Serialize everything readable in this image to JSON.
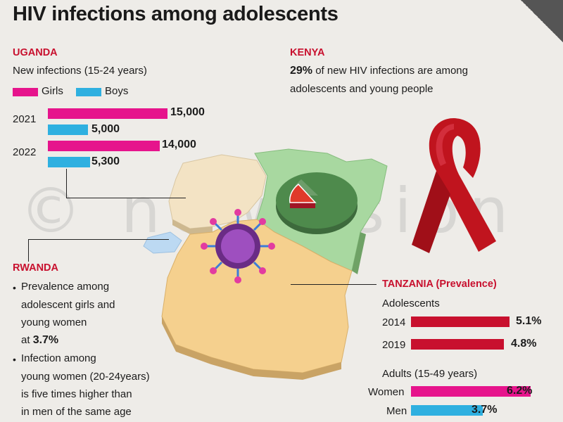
{
  "title": "HIV infections among adolescents",
  "colors": {
    "girls": "#e6148c",
    "boys": "#2fb0e0",
    "tanzania_bars": "#c8102e",
    "accent_red": "#c8102e"
  },
  "watermark": "© newvision",
  "uganda": {
    "label": "UGANDA",
    "subtitle": "New infections (15-24 years)",
    "legend": {
      "girls": "Girls",
      "boys": "Boys"
    },
    "rows": [
      {
        "year": "2021",
        "girls": "15,000",
        "boys": "5,000"
      },
      {
        "year": "2022",
        "girls": "14,000",
        "boys": "5,300"
      }
    ]
  },
  "kenya": {
    "label": "KENYA",
    "pct": "29%",
    "text1": "of new HIV infections are among",
    "text2": "adolescents and young people"
  },
  "rwanda": {
    "label": "RWANDA",
    "b1_l1": "Prevalence among",
    "b1_l2": "adolescent girls and",
    "b1_l3": "young women",
    "b1_l4_pre": "at",
    "b1_val": "3.7%",
    "b2_l1": "Infection among",
    "b2_l2": "young women (20-24years)",
    "b2_l3": "is five times higher than",
    "b2_l4": "in men of the same age"
  },
  "tanzania": {
    "label": "TANZANIA (Prevalence)",
    "adolescents_label": "Adolescents",
    "adolescents": [
      {
        "year": "2014",
        "value": "5.1%"
      },
      {
        "year": "2019",
        "value": "4.8%"
      }
    ],
    "adults_label": "Adults (15-49 years)",
    "adults": [
      {
        "label": "Women",
        "value": "6.2%"
      },
      {
        "label": "Men",
        "value": "3.7%"
      }
    ]
  },
  "chart_data": [
    {
      "type": "bar",
      "title": "New infections (15-24 years)",
      "categories": [
        "2021",
        "2022"
      ],
      "series": [
        {
          "name": "Girls",
          "values": [
            15000,
            14000
          ]
        },
        {
          "name": "Boys",
          "values": [
            5000,
            5300
          ]
        }
      ]
    },
    {
      "type": "pie",
      "slices": [
        {
          "label": "adolescents and young people",
          "value": 29
        },
        {
          "label": "",
          "value": 71
        }
      ]
    },
    {
      "type": "bar",
      "title": "Adolescents",
      "categories": [
        "2014",
        "2019"
      ],
      "values": [
        5.1,
        4.8
      ]
    },
    {
      "type": "bar",
      "title": "Adults (15-49 years)",
      "categories": [
        "Women",
        "Men"
      ],
      "values": [
        6.2,
        3.7
      ]
    }
  ]
}
